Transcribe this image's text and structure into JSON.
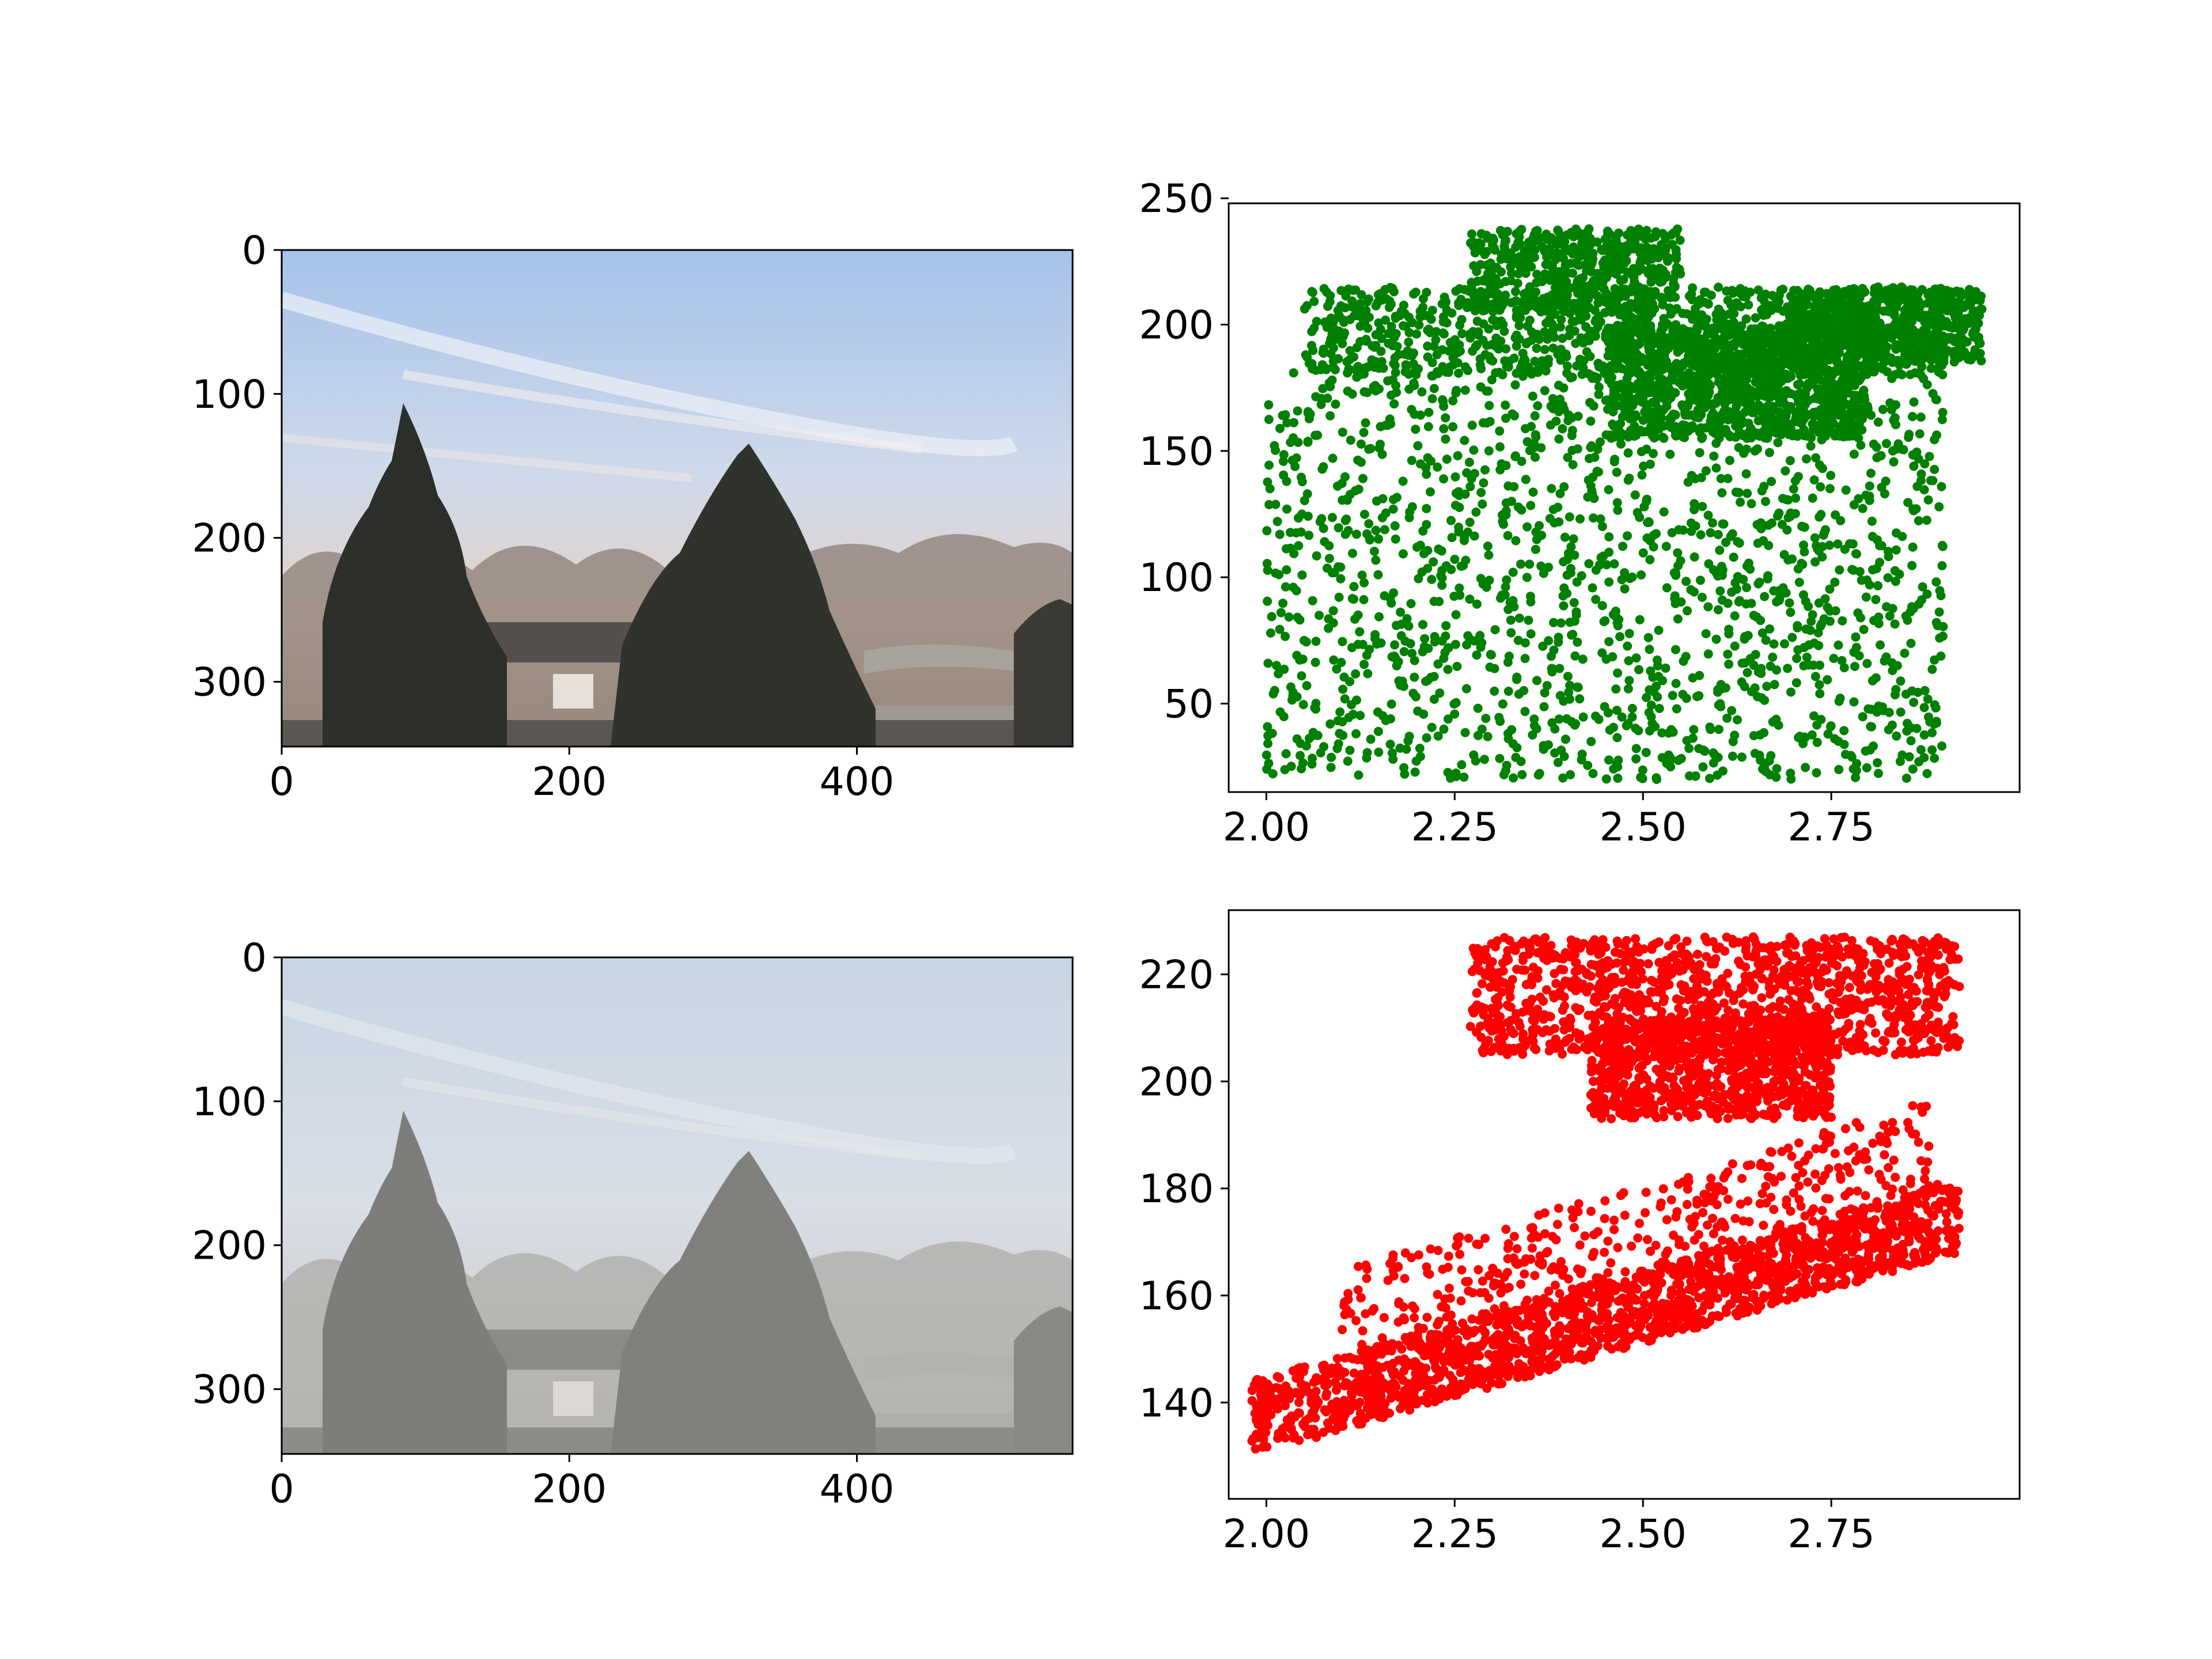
{
  "figure": {
    "background": "#ffffff"
  },
  "chart_data": [
    {
      "type": "image",
      "id": "clear-image",
      "description_rendered": "photo of a park with evergreen trees, willows and a bridge under a clear blue sky",
      "x_ticks": [
        "0",
        "200",
        "400"
      ],
      "x_tick_values": [
        0,
        200,
        400
      ],
      "y_ticks": [
        "0",
        "100",
        "200",
        "300"
      ],
      "y_tick_values": [
        0,
        100,
        200,
        300
      ],
      "xlim": [
        0,
        550
      ],
      "ylim": [
        0,
        345
      ],
      "y_inverted": true,
      "colors": {
        "sky_top": "#a9c3e8",
        "sky_mid": "#d3dbe9",
        "haze": "#e3d1c7",
        "trees": "#2c2e29",
        "ground": "#4b4a47"
      }
    },
    {
      "type": "scatter",
      "id": "clear-scatter",
      "color": "#008000",
      "xlim": [
        1.95,
        3.0
      ],
      "ylim": [
        15,
        248
      ],
      "x_ticks": [
        "2.00",
        "2.25",
        "2.50",
        "2.75"
      ],
      "x_tick_values": [
        2.0,
        2.25,
        2.5,
        2.75
      ],
      "y_ticks": [
        "50",
        "100",
        "150",
        "200",
        "250"
      ],
      "y_tick_values": [
        50,
        100,
        150,
        200,
        250
      ],
      "regions": [
        {
          "x": [
            2.0,
            2.9
          ],
          "y": [
            20,
            185
          ],
          "count": 1600,
          "note": "sparse lower region"
        },
        {
          "x": [
            2.05,
            2.9
          ],
          "y": [
            180,
            215
          ],
          "count": 900
        },
        {
          "x": [
            2.27,
            2.55
          ],
          "y": [
            205,
            238
          ],
          "count": 500
        },
        {
          "x": [
            2.45,
            2.8
          ],
          "y": [
            155,
            200
          ],
          "count": 1100,
          "note": "dense block"
        },
        {
          "x": [
            2.7,
            2.95
          ],
          "y": [
            185,
            215
          ],
          "count": 500
        }
      ]
    },
    {
      "type": "image",
      "id": "hazy-image",
      "description_rendered": "the same park scene covered in gray haze",
      "x_ticks": [
        "0",
        "200",
        "400"
      ],
      "x_tick_values": [
        0,
        200,
        400
      ],
      "y_ticks": [
        "0",
        "100",
        "200",
        "300"
      ],
      "y_tick_values": [
        0,
        100,
        200,
        300
      ],
      "xlim": [
        0,
        550
      ],
      "ylim": [
        0,
        345
      ],
      "y_inverted": true,
      "colors": {
        "sky_top": "#c9d5e3",
        "sky_mid": "#d8dde4",
        "haze": "#c3c2be",
        "trees": "#7f807b",
        "ground": "#8f8e8a"
      }
    },
    {
      "type": "scatter",
      "id": "hazy-scatter",
      "color": "#ff0000",
      "xlim": [
        1.95,
        3.0
      ],
      "ylim": [
        122,
        232
      ],
      "x_ticks": [
        "2.00",
        "2.25",
        "2.50",
        "2.75"
      ],
      "x_tick_values": [
        2.0,
        2.25,
        2.5,
        2.75
      ],
      "y_ticks": [
        "140",
        "160",
        "180",
        "200",
        "220"
      ],
      "y_tick_values": [
        140,
        160,
        180,
        200,
        220
      ],
      "regions": [
        {
          "x": [
            2.27,
            2.92
          ],
          "y": [
            205,
            227
          ],
          "count": 1200,
          "note": "dense top band"
        },
        {
          "x": [
            2.43,
            2.75
          ],
          "y": [
            193,
            212
          ],
          "count": 900
        },
        {
          "x": [
            1.98,
            2.92
          ],
          "y": [
            128,
            160
          ],
          "count": 1400,
          "note": "lower diagonal band"
        },
        {
          "x": [
            2.1,
            2.88
          ],
          "y": [
            150,
            200
          ],
          "count": 700,
          "note": "diagonal spread"
        }
      ]
    }
  ]
}
